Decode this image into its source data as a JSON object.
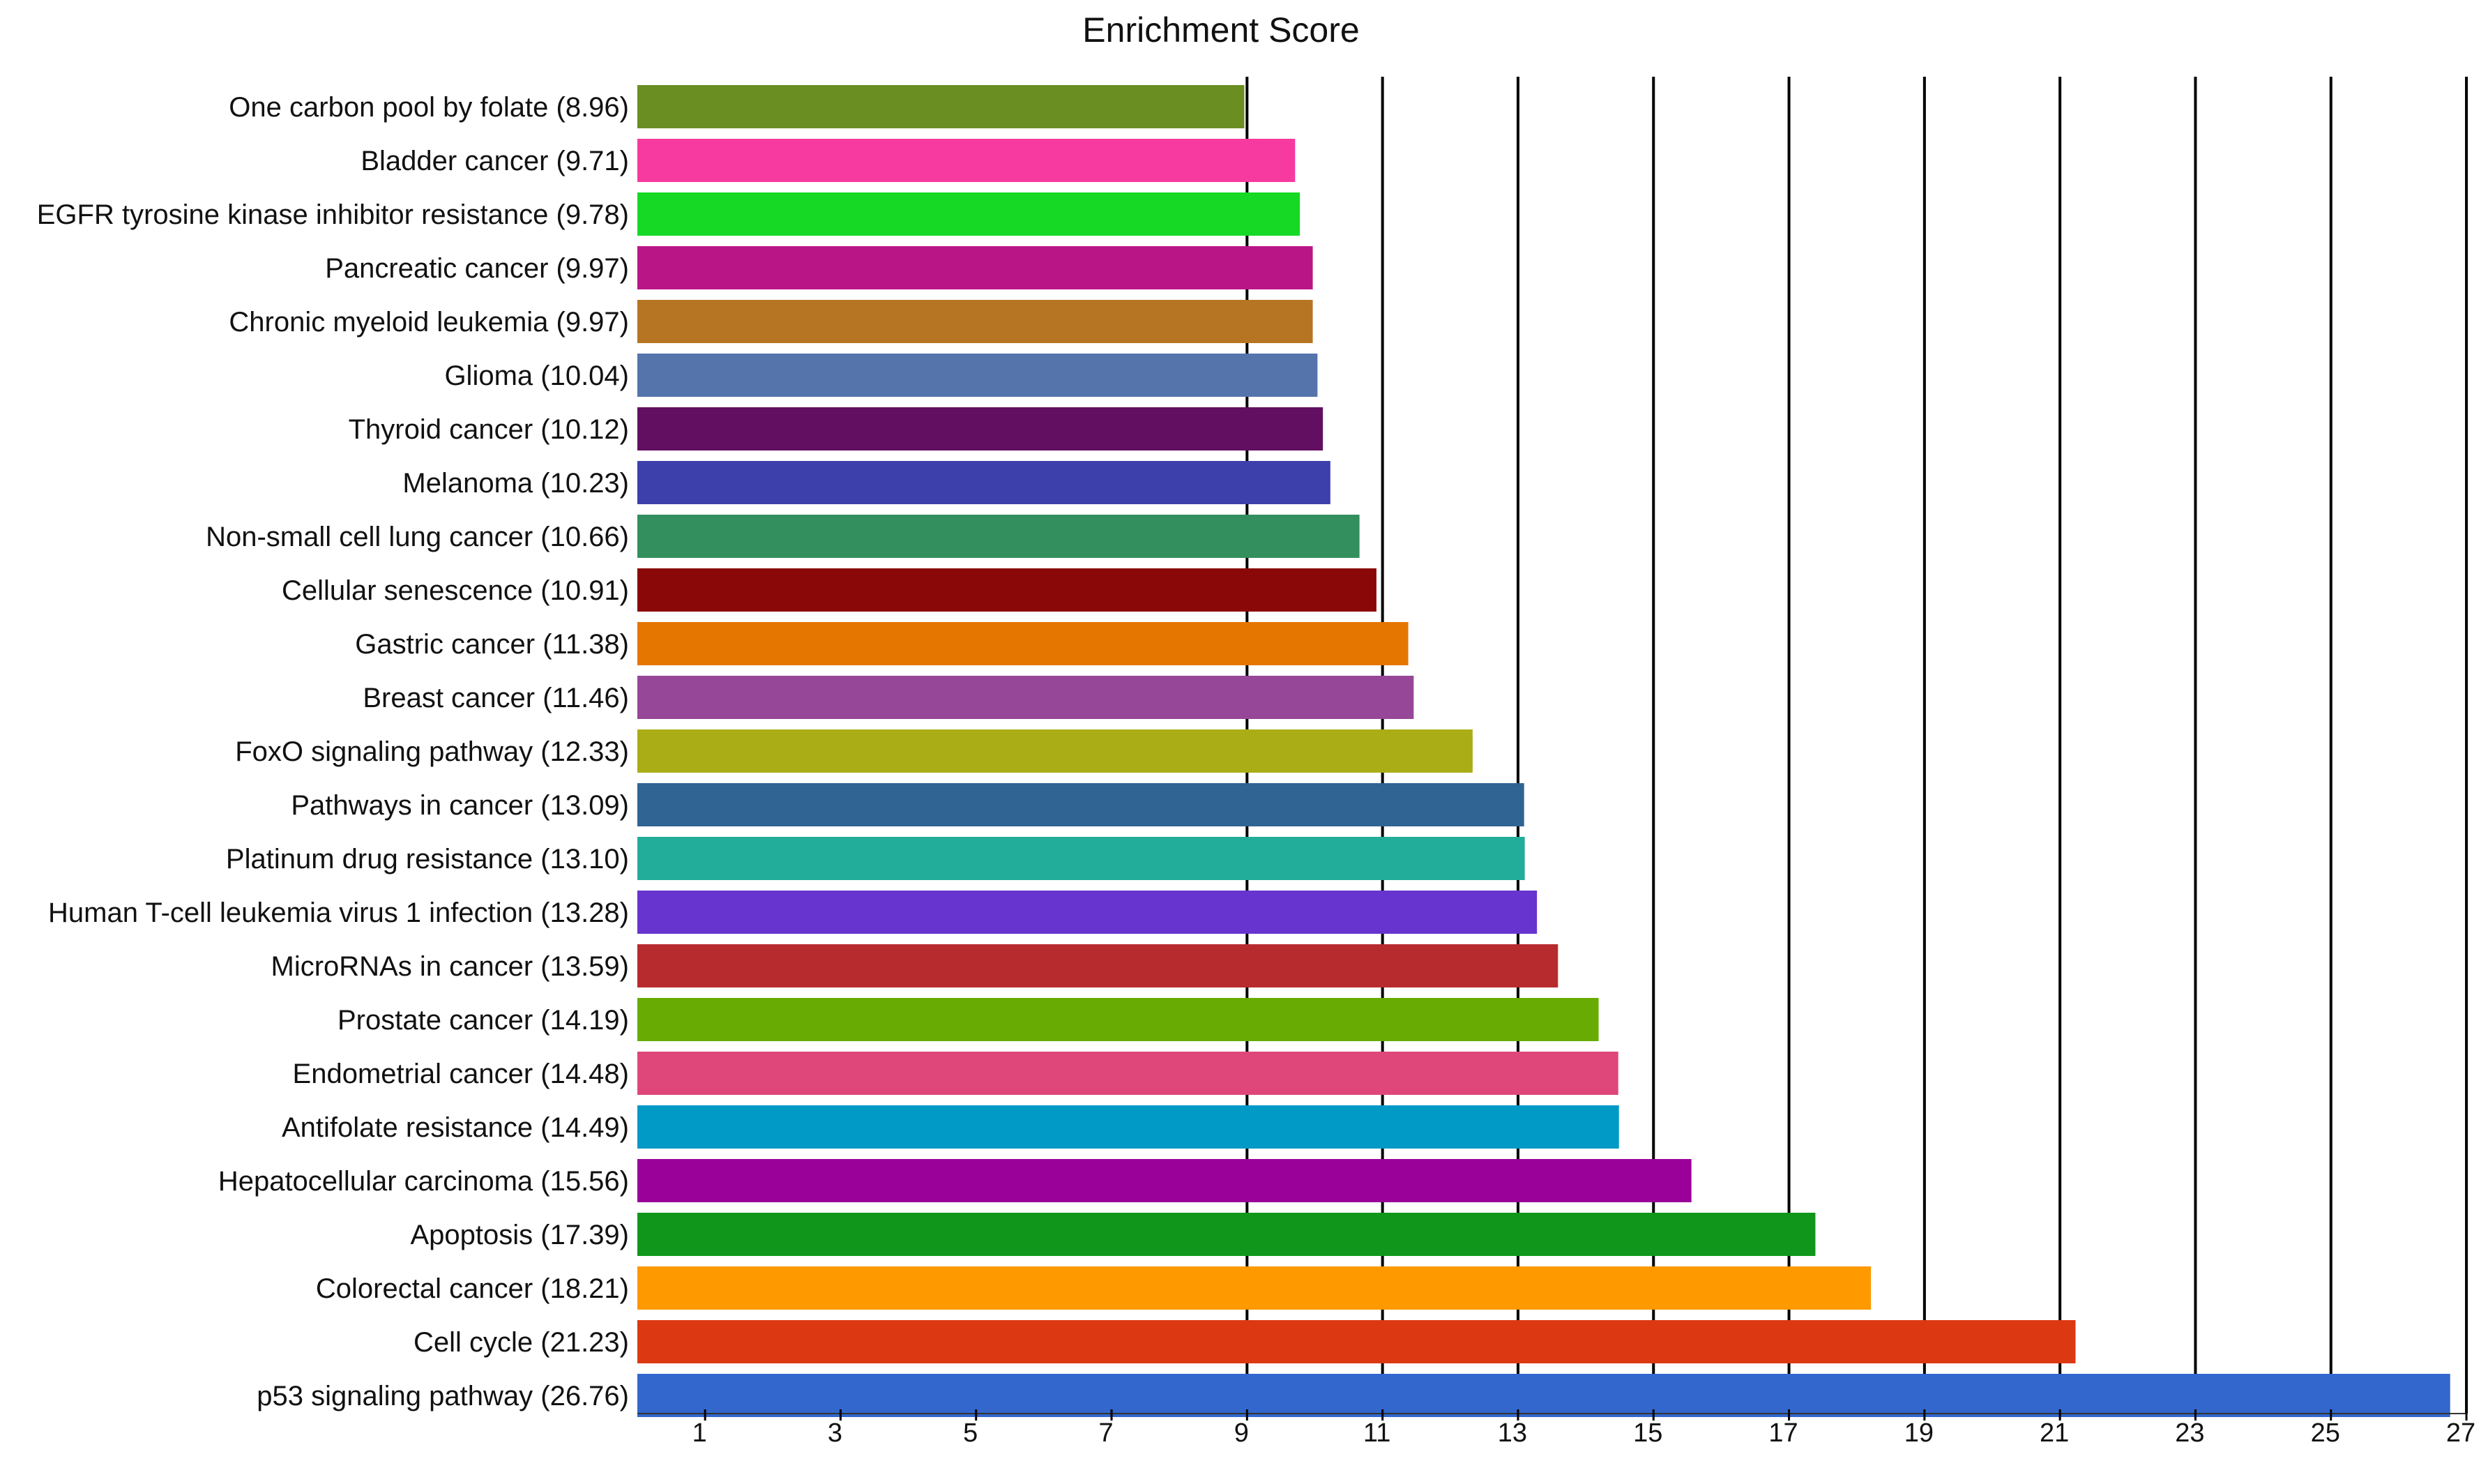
{
  "chart_data": {
    "type": "bar",
    "orientation": "horizontal",
    "title": "Enrichment Score",
    "xlabel": "",
    "ylabel": "",
    "xlim": [
      0,
      27
    ],
    "x_ticks": [
      1,
      3,
      5,
      7,
      9,
      11,
      13,
      15,
      17,
      19,
      21,
      23,
      25,
      27
    ],
    "grid": "vertical lines at 9, 11, 13, 15, 17, 19, 21, 23, 25, 27",
    "legend": "none",
    "bars": [
      {
        "label": "One carbon pool by folate (8.96)",
        "value": 8.96,
        "color": "#6b8e23"
      },
      {
        "label": "Bladder cancer (9.71)",
        "value": 9.71,
        "color": "#f73a9f"
      },
      {
        "label": "EGFR tyrosine kinase inhibitor resistance (9.78)",
        "value": 9.78,
        "color": "#16d926"
      },
      {
        "label": "Pancreatic cancer (9.97)",
        "value": 9.97,
        "color": "#ba1586"
      },
      {
        "label": "Chronic myeloid leukemia (9.97)",
        "value": 9.97,
        "color": "#b57522"
      },
      {
        "label": "Glioma (10.04)",
        "value": 10.04,
        "color": "#5574ab"
      },
      {
        "label": "Thyroid cancer (10.12)",
        "value": 10.12,
        "color": "#620f61"
      },
      {
        "label": "Melanoma (10.23)",
        "value": 10.23,
        "color": "#3d3fab"
      },
      {
        "label": "Non-small cell lung cancer (10.66)",
        "value": 10.66,
        "color": "#338f5d"
      },
      {
        "label": "Cellular senescence (10.91)",
        "value": 10.91,
        "color": "#8a0808"
      },
      {
        "label": "Gastric cancer (11.38)",
        "value": 11.38,
        "color": "#e57600"
      },
      {
        "label": "Breast cancer (11.46)",
        "value": 11.46,
        "color": "#964797"
      },
      {
        "label": "FoxO signaling pathway (12.33)",
        "value": 12.33,
        "color": "#aaad16"
      },
      {
        "label": "Pathways in cancer (13.09)",
        "value": 13.09,
        "color": "#2f6493"
      },
      {
        "label": "Platinum drug resistance (13.10)",
        "value": 13.1,
        "color": "#22ad9b"
      },
      {
        "label": "Human T-cell leukemia virus 1 infection (13.28)",
        "value": 13.28,
        "color": "#6734d0"
      },
      {
        "label": "MicroRNAs in cancer (13.59)",
        "value": 13.59,
        "color": "#b72b2f"
      },
      {
        "label": "Prostate cancer (14.19)",
        "value": 14.19,
        "color": "#68ab02"
      },
      {
        "label": "Endometrial cancer (14.48)",
        "value": 14.48,
        "color": "#df477a"
      },
      {
        "label": "Antifolate resistance (14.49)",
        "value": 14.49,
        "color": "#0199c6"
      },
      {
        "label": "Hepatocellular carcinoma (15.56)",
        "value": 15.56,
        "color": "#990199"
      },
      {
        "label": "Apoptosis (17.39)",
        "value": 17.39,
        "color": "#10971b"
      },
      {
        "label": "Colorectal cancer (18.21)",
        "value": 18.21,
        "color": "#fe9900"
      },
      {
        "label": "Cell cycle (21.23)",
        "value": 21.23,
        "color": "#dc3913"
      },
      {
        "label": "p53 signaling pathway (26.76)",
        "value": 26.76,
        "color": "#3367cd"
      }
    ]
  }
}
